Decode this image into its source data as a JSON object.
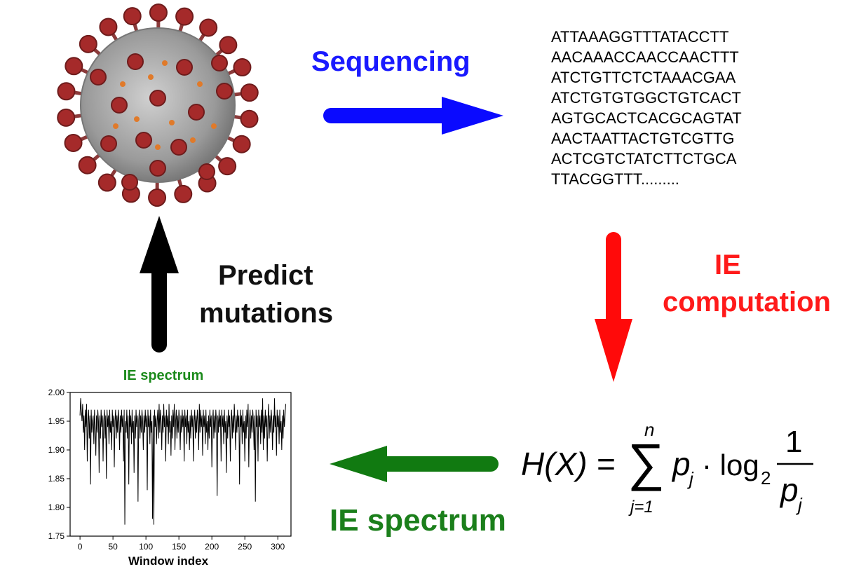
{
  "labels": {
    "sequencing": "Sequencing",
    "ie": "IE",
    "computation": "computation",
    "predict": "Predict",
    "mutations": "mutations",
    "ie_spectrum": "IE spectrum"
  },
  "sequence_lines": [
    "ATTAAAGGTTTATACCTT",
    "AACAAACCAACCAACTTT",
    "ATCTGTTCTCTAAACGAA",
    "ATCTGTGTGGCTGTCACT",
    "AGTGCACTCACGCAGTAT",
    "AACTAATTACTGTCGTTG",
    "ACTCGTCTATCTTCTGCA",
    "TTACGGTTT........."
  ],
  "formula": {
    "lhs": "H(X) = ",
    "upper": "n",
    "lower": "j=1",
    "term": "p",
    "sub": "j",
    "log": "· log",
    "log_base": "2",
    "numerator": "1",
    "denominator": "p",
    "denominator_sub": "j"
  },
  "colors": {
    "blue_arrow": "#0a0aff",
    "red_arrow": "#ff0a0a",
    "green_arrow": "#117a11",
    "black_arrow": "#000000",
    "virus_body": "#a9a9a9",
    "virus_spike": "#a52a2a"
  },
  "chart_data": {
    "type": "line",
    "title": "IE spectrum",
    "xlabel": "Window index",
    "ylabel": "",
    "xlim": [
      -15,
      320
    ],
    "ylim": [
      1.75,
      2.0
    ],
    "xticks": [
      "0",
      "50",
      "100",
      "150",
      "200",
      "250",
      "300"
    ],
    "yticks": [
      "1.75",
      "1.80",
      "1.85",
      "1.90",
      "1.95",
      "2.00"
    ],
    "series": [
      {
        "y": [
          1.96,
          1.99,
          1.97,
          1.95,
          1.98,
          1.93,
          1.96,
          1.9,
          1.97,
          1.94,
          1.98,
          1.88,
          1.95,
          1.97,
          1.92,
          1.96,
          1.84,
          1.97,
          1.93,
          1.95,
          1.96,
          1.91,
          1.97,
          1.94,
          1.89,
          1.96,
          1.93,
          1.97,
          1.95,
          1.86,
          1.96,
          1.92,
          1.97,
          1.94,
          1.96,
          1.88,
          1.95,
          1.97,
          1.92,
          1.96,
          1.85,
          1.97,
          1.94,
          1.96,
          1.91,
          1.97,
          1.93,
          1.95,
          1.9,
          1.97,
          1.94,
          1.96,
          1.87,
          1.95,
          1.97,
          1.92,
          1.96,
          1.93,
          1.97,
          1.95,
          1.9,
          1.96,
          1.93,
          1.97,
          1.94,
          1.96,
          1.88,
          1.97,
          1.77,
          1.95,
          1.93,
          1.97,
          1.92,
          1.96,
          1.84,
          1.97,
          1.94,
          1.96,
          1.91,
          1.97,
          1.93,
          1.95,
          1.86,
          1.96,
          1.92,
          1.97,
          1.94,
          1.96,
          1.81,
          1.95,
          1.97,
          1.92,
          1.96,
          1.93,
          1.97,
          1.95,
          1.9,
          1.96,
          1.93,
          1.97,
          1.94,
          1.96,
          1.83,
          1.97,
          1.94,
          1.96,
          1.91,
          1.97,
          1.93,
          1.95,
          1.78,
          1.96,
          1.77,
          1.97,
          1.94,
          1.96,
          1.91,
          1.95,
          1.97,
          1.92,
          1.98,
          1.93,
          1.97,
          1.95,
          1.9,
          1.96,
          1.93,
          1.98,
          1.94,
          1.96,
          1.88,
          1.97,
          1.94,
          1.96,
          1.91,
          1.98,
          1.93,
          1.95,
          1.89,
          1.96,
          1.92,
          1.97,
          1.94,
          1.98,
          1.9,
          1.95,
          1.97,
          1.92,
          1.96,
          1.93,
          1.97,
          1.95,
          1.9,
          1.96,
          1.93,
          1.97,
          1.94,
          1.96,
          1.88,
          1.97,
          1.94,
          1.96,
          1.91,
          1.97,
          1.93,
          1.95,
          1.9,
          1.96,
          1.92,
          1.97,
          1.94,
          1.96,
          1.88,
          1.95,
          1.97,
          1.92,
          1.96,
          1.93,
          1.97,
          1.95,
          1.9,
          1.98,
          1.93,
          1.97,
          1.94,
          1.96,
          1.89,
          1.97,
          1.94,
          1.96,
          1.91,
          1.97,
          1.93,
          1.95,
          1.9,
          1.96,
          1.92,
          1.97,
          1.94,
          1.96,
          1.87,
          1.95,
          1.97,
          1.92,
          1.96,
          1.93,
          1.97,
          1.95,
          1.82,
          1.96,
          1.93,
          1.97,
          1.94,
          1.96,
          1.88,
          1.97,
          1.94,
          1.96,
          1.91,
          1.97,
          1.93,
          1.95,
          1.86,
          1.96,
          1.92,
          1.97,
          1.94,
          1.96,
          1.88,
          1.95,
          1.97,
          1.92,
          1.96,
          1.93,
          1.98,
          1.95,
          1.9,
          1.96,
          1.93,
          1.97,
          1.94,
          1.96,
          1.84,
          1.97,
          1.94,
          1.96,
          1.91,
          1.97,
          1.93,
          1.95,
          1.88,
          1.96,
          1.92,
          1.97,
          1.94,
          1.98,
          1.87,
          1.95,
          1.97,
          1.92,
          1.96,
          1.93,
          1.97,
          1.95,
          1.9,
          1.96,
          1.81,
          1.97,
          1.94,
          1.96,
          1.88,
          1.97,
          1.94,
          1.96,
          1.91,
          1.97,
          1.93,
          1.99,
          1.9,
          1.96,
          1.92,
          1.97,
          1.94,
          1.96,
          1.88,
          1.95,
          1.98,
          1.92,
          1.96,
          1.93,
          1.97,
          1.95,
          1.9,
          1.96,
          1.93,
          1.99,
          1.94,
          1.96,
          1.89,
          1.97,
          1.94,
          1.96,
          1.91,
          1.97,
          1.93,
          1.95,
          1.9,
          1.96,
          1.92,
          1.97,
          1.94,
          1.96,
          1.98
        ]
      }
    ]
  }
}
